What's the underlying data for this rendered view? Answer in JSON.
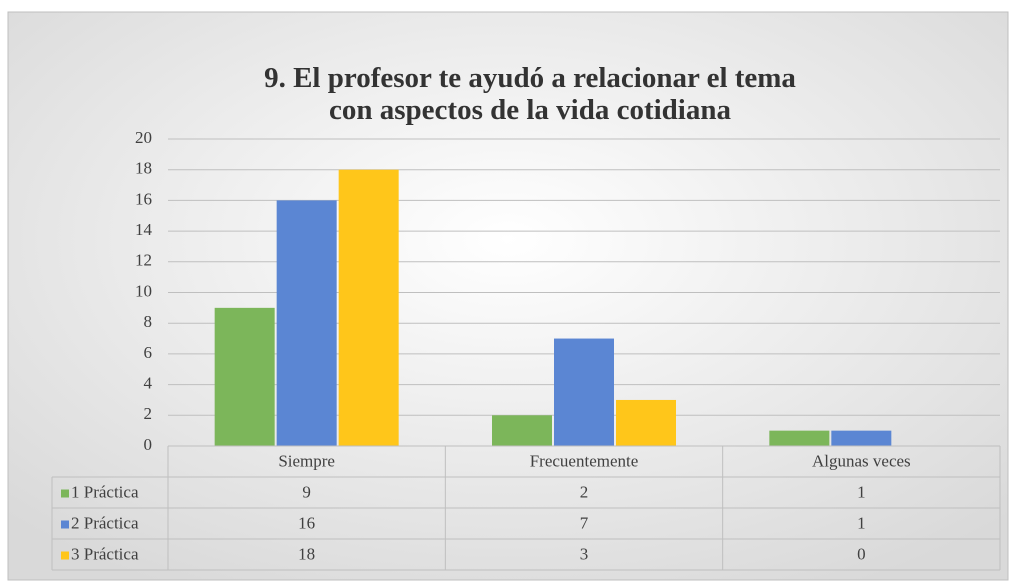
{
  "chart_data": {
    "type": "bar",
    "title": "9. El profesor te ayudó a relacionar el tema con aspectos de la vida cotidiana",
    "categories": [
      "Siempre",
      "Frecuentemente",
      "Algunas veces"
    ],
    "series": [
      {
        "name": "1 Práctica",
        "color": "#7cb65a",
        "values": [
          9,
          2,
          1
        ]
      },
      {
        "name": "2 Práctica",
        "color": "#5b86d3",
        "values": [
          16,
          7,
          1
        ]
      },
      {
        "name": "3 Práctica",
        "color": "#ffc61a",
        "values": [
          18,
          3,
          0
        ]
      }
    ],
    "ylim": [
      0,
      20
    ],
    "yticks": [
      0,
      2,
      4,
      6,
      8,
      10,
      12,
      14,
      16,
      18,
      20
    ],
    "grid": true
  }
}
